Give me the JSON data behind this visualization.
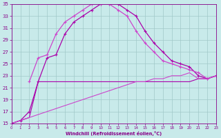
{
  "background_color": "#c8eaea",
  "grid_color": "#a0c8c8",
  "line_color": "#aa00aa",
  "line_color2": "#cc44cc",
  "xlabel": "Windchill (Refroidissement éolien,°C)",
  "xlabel_color": "#880088",
  "tick_color": "#880088",
  "ylim": [
    15,
    35
  ],
  "xlim": [
    0,
    23
  ],
  "yticks": [
    15,
    17,
    19,
    21,
    23,
    25,
    27,
    29,
    31,
    33,
    35
  ],
  "xticks": [
    0,
    1,
    2,
    3,
    4,
    5,
    6,
    7,
    8,
    9,
    10,
    11,
    12,
    13,
    14,
    15,
    16,
    17,
    18,
    19,
    20,
    21,
    22,
    23
  ],
  "curve_arch1_x": [
    0,
    1,
    2,
    3,
    4,
    5,
    6,
    7,
    8,
    9,
    10,
    11,
    12,
    13,
    14,
    15,
    16,
    17,
    18,
    19,
    20,
    21,
    22,
    23
  ],
  "curve_arch1_y": [
    15,
    15.5,
    17,
    22,
    26,
    26.5,
    30,
    32,
    33,
    34,
    35,
    35,
    35,
    34,
    33,
    30.5,
    28.5,
    27,
    25.5,
    25,
    24.5,
    23,
    22.5,
    23
  ],
  "curve_arch2_x": [
    2,
    3,
    4,
    5,
    6,
    7,
    8,
    9,
    10,
    11,
    12,
    13,
    14,
    15,
    16,
    17,
    18,
    19,
    20,
    21,
    22,
    23
  ],
  "curve_arch2_y": [
    22,
    26,
    26.5,
    30,
    32,
    33,
    34,
    35,
    35,
    35,
    34,
    33,
    30.5,
    28.5,
    27,
    25.5,
    25,
    24.5,
    24,
    23.5,
    22.5,
    23
  ],
  "curve_flat_x": [
    0,
    1,
    2,
    3,
    4,
    5,
    6,
    7,
    8,
    9,
    10,
    11,
    12,
    13,
    14,
    15,
    16,
    17,
    18,
    19,
    20,
    21,
    22,
    23
  ],
  "curve_flat_y": [
    15,
    15.5,
    16,
    22,
    22,
    22,
    22,
    22,
    22,
    22,
    22,
    22,
    22,
    22,
    22,
    22,
    22,
    22,
    22,
    22,
    22,
    22.5,
    22.5,
    23
  ],
  "curve_diag_x": [
    0,
    1,
    2,
    3,
    4,
    5,
    6,
    7,
    8,
    9,
    10,
    11,
    12,
    13,
    14,
    15,
    16,
    17,
    18,
    19,
    20,
    21,
    22,
    23
  ],
  "curve_diag_y": [
    15,
    15.5,
    16,
    16.5,
    17,
    17.5,
    18,
    18.5,
    19,
    19.5,
    20,
    20.5,
    21,
    21.5,
    22,
    22,
    22.5,
    22.5,
    23,
    23,
    23.5,
    22.5,
    22.5,
    23
  ]
}
